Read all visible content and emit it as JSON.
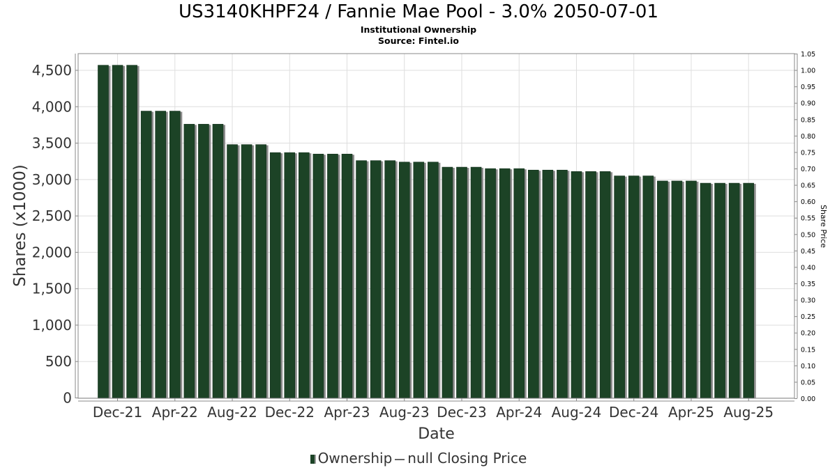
{
  "title": "US3140KHPF24 / Fannie Mae Pool - 3.0% 2050-07-01",
  "subtitle": "Institutional Ownership",
  "source": "Source: Fintel.io",
  "legend": {
    "ownership": "Ownership",
    "price": "null Closing Price"
  },
  "colors": {
    "bar": "#1c4326",
    "bar_shadow": "#8c8c8c",
    "grid": "#dedede",
    "plot_border": "#888888"
  },
  "chart_data": {
    "type": "bar",
    "xlabel": "Date",
    "ylabel": "Shares (x1000)",
    "y2label": "Share Price",
    "ylim": [
      0,
      4700
    ],
    "y2lim": [
      0,
      1.05
    ],
    "yticks": [
      0,
      500,
      1000,
      1500,
      2000,
      2500,
      3000,
      3500,
      4000,
      4500
    ],
    "ytick_labels": [
      "0",
      "500",
      "1,000",
      "1,500",
      "2,000",
      "2,500",
      "3,000",
      "3,500",
      "4,000",
      "4,500"
    ],
    "y2ticks": [
      "0.00",
      "0.05",
      "0.10",
      "0.15",
      "0.20",
      "0.25",
      "0.30",
      "0.35",
      "0.40",
      "0.45",
      "0.50",
      "0.55",
      "0.60",
      "0.65",
      "0.70",
      "0.75",
      "0.80",
      "0.85",
      "0.90",
      "0.95",
      "1.00",
      "1.05"
    ],
    "xtick_labels": [
      "Dec-21",
      "Apr-22",
      "Aug-22",
      "Dec-22",
      "Apr-23",
      "Aug-23",
      "Dec-23",
      "Apr-24",
      "Aug-24",
      "Dec-24",
      "Apr-25",
      "Aug-25"
    ],
    "xticks_month_index": [
      1,
      5,
      9,
      13,
      17,
      21,
      25,
      29,
      33,
      37,
      41,
      45
    ],
    "x_range_month_index": [
      -1.75,
      48.2
    ],
    "grid": true,
    "legend_position": "bottom",
    "series": [
      {
        "name": "Ownership",
        "month_index": [
          0,
          1,
          2,
          3,
          4,
          5,
          6,
          7,
          8,
          9,
          10,
          11,
          12,
          13,
          14,
          15,
          16,
          17,
          18,
          19,
          20,
          21,
          22,
          23,
          24,
          25,
          26,
          27,
          28,
          29,
          30,
          31,
          32,
          33,
          34,
          35,
          36,
          37,
          38,
          39,
          40,
          41,
          42,
          43,
          44,
          45
        ],
        "x": [
          "2021-11",
          "2021-12",
          "2022-01",
          "2022-02",
          "2022-03",
          "2022-04",
          "2022-05",
          "2022-06",
          "2022-07",
          "2022-08",
          "2022-09",
          "2022-10",
          "2022-11",
          "2022-12",
          "2023-01",
          "2023-02",
          "2023-03",
          "2023-04",
          "2023-05",
          "2023-06",
          "2023-07",
          "2023-08",
          "2023-09",
          "2023-10",
          "2023-11",
          "2023-12",
          "2024-01",
          "2024-02",
          "2024-03",
          "2024-04",
          "2024-05",
          "2024-06",
          "2024-07",
          "2024-08",
          "2024-09",
          "2024-10",
          "2024-11",
          "2024-12",
          "2025-01",
          "2025-02",
          "2025-03",
          "2025-04",
          "2025-05",
          "2025-06",
          "2025-07",
          "2025-08"
        ],
        "values": [
          4570,
          4570,
          4570,
          3940,
          3940,
          3940,
          3760,
          3760,
          3760,
          3480,
          3480,
          3480,
          3370,
          3370,
          3370,
          3350,
          3350,
          3350,
          3260,
          3260,
          3260,
          3240,
          3240,
          3240,
          3170,
          3170,
          3170,
          3150,
          3150,
          3150,
          3130,
          3130,
          3130,
          3110,
          3110,
          3110,
          3050,
          3050,
          3050,
          2980,
          2980,
          2980,
          2950,
          2950,
          2950,
          2950
        ]
      },
      {
        "name": "null Closing Price",
        "values": []
      }
    ]
  }
}
